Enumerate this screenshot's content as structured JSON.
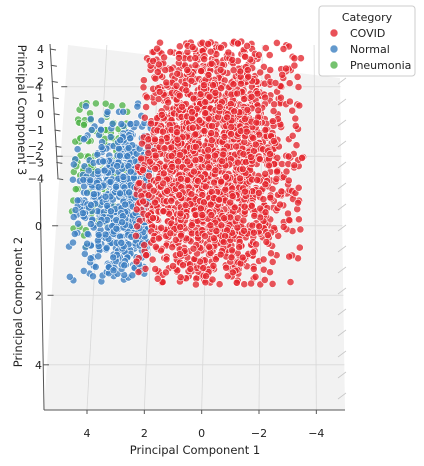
{
  "chart_data": {
    "type": "scatter",
    "projection": "3d",
    "xlabel": "Principal Component 1",
    "ylabel": "Principal Component 2",
    "zlabel": "Principal Component 3",
    "x_ticks": [
      4,
      2,
      0,
      -2,
      -4
    ],
    "x_tick_labels": [
      "4",
      "2",
      "0",
      "−2",
      "−4"
    ],
    "y_ticks": [
      -4,
      -2,
      0,
      2,
      4
    ],
    "y_tick_labels": [
      "−4",
      "−2",
      "0",
      "2",
      "4"
    ],
    "z_ticks": [
      4,
      3,
      2,
      1,
      0,
      -1,
      -2,
      -3,
      -4
    ],
    "z_tick_labels": [
      "4",
      "3",
      "2",
      "1",
      "0",
      "−1",
      "−2",
      "−3",
      "−4"
    ],
    "xlim": [
      -5,
      5.5
    ],
    "ylim": [
      -5.2,
      5.3
    ],
    "legend": {
      "title": "Category",
      "placement": "top-right",
      "entries": [
        {
          "label": "COVID",
          "color": "#e4262e"
        },
        {
          "label": "Normal",
          "color": "#3c7fc1"
        },
        {
          "label": "Pneumonia",
          "color": "#51b34a"
        }
      ]
    },
    "series": [
      {
        "name": "Pneumonia",
        "color": "#51b34a",
        "center": [
          3.8,
          -1.8
        ],
        "spread": [
          1.2,
          1.2
        ],
        "extent": [
          [
            3.0,
            5.0
          ],
          [
            -3.6,
            0.6
          ]
        ]
      },
      {
        "name": "Normal",
        "color": "#3c7fc1",
        "center": [
          2.8,
          -0.7
        ],
        "spread": [
          1.05,
          1.2
        ],
        "extent": [
          [
            2.1,
            5.0
          ],
          [
            -3.6,
            1.6
          ]
        ]
      },
      {
        "name": "COVID",
        "color": "#e4262e",
        "center": [
          -0.1,
          -1.8
        ],
        "spread": [
          1.55,
          1.9
        ],
        "extent": [
          [
            -3.6,
            2.6
          ],
          [
            -5.3,
            1.7
          ]
        ]
      }
    ]
  }
}
